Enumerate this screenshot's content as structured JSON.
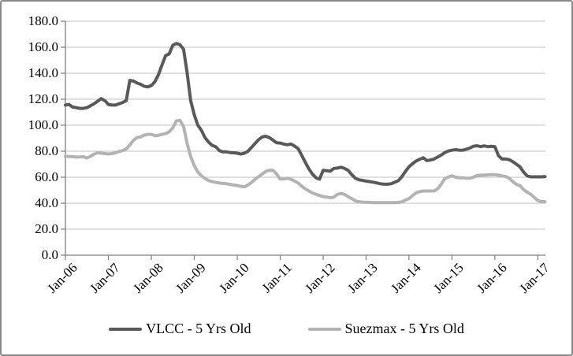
{
  "chart_data": {
    "type": "line",
    "title": "",
    "x_start": "Jan-2006",
    "x_freq": "monthly",
    "x_tick_labels": [
      "Jan-06",
      "Jan-07",
      "Jan-08",
      "Jan-09",
      "Jan-10",
      "Jan-11",
      "Jan-12",
      "Jan-13",
      "Jan-14",
      "Jan-15",
      "Jan-16",
      "Jan-17"
    ],
    "y_tick_labels": [
      "0.0",
      "20.0",
      "40.0",
      "60.0",
      "80.0",
      "100.0",
      "120.0",
      "140.0",
      "160.0",
      "180.0"
    ],
    "y_axis": {
      "min": 0,
      "max": 180,
      "step": 20
    },
    "grid": "horizontal",
    "legend_position": "bottom",
    "series": [
      {
        "name": "VLCC - 5 Yrs Old",
        "color": "#595959",
        "values": [
          115.5,
          116,
          114,
          113.5,
          113,
          113,
          113.5,
          115,
          116.5,
          118.5,
          120.5,
          119,
          116,
          115.5,
          115.5,
          116.5,
          117.5,
          119,
          134.5,
          134,
          132.5,
          131.5,
          130,
          129.5,
          130.5,
          133.5,
          139,
          146.5,
          153.5,
          155,
          161.5,
          163,
          162,
          158.5,
          140.5,
          119,
          108,
          100,
          96,
          90.5,
          87,
          84.5,
          83.5,
          80.5,
          79.5,
          79.5,
          79,
          78.8,
          78.5,
          77.8,
          78.5,
          80,
          83,
          86,
          89,
          91,
          91.5,
          90.5,
          88.5,
          86.5,
          86.3,
          85.5,
          85,
          85.5,
          84,
          82,
          77,
          71.5,
          66.5,
          62.5,
          59.5,
          58.5,
          65.3,
          65,
          64.6,
          66.7,
          67,
          67.7,
          66.7,
          65.3,
          62,
          59.2,
          58,
          57.6,
          57,
          56.6,
          56.2,
          55.6,
          55,
          54.6,
          54.6,
          55,
          56.2,
          57.3,
          60.5,
          64.5,
          68,
          70.5,
          72.5,
          73.8,
          75,
          72.8,
          73.2,
          74,
          75.5,
          77,
          79,
          80.2,
          80.8,
          81.2,
          80.8,
          80.8,
          81.6,
          82.4,
          83.9,
          84.2,
          83.5,
          84.1,
          83.5,
          83.8,
          83.5,
          76.5,
          74,
          74,
          73.5,
          72,
          70,
          68,
          64,
          61,
          60.3,
          60.3,
          60.3,
          60.3,
          60.5
        ]
      },
      {
        "name": "Suezmax - 5 Yrs Old",
        "color": "#b3b3b3",
        "values": [
          76,
          76,
          75.8,
          75.5,
          75.5,
          75.8,
          74.8,
          76,
          77.8,
          78.8,
          78.5,
          78.2,
          77.9,
          78.2,
          78.8,
          79.8,
          80.5,
          81.8,
          84.8,
          88.3,
          90.5,
          91,
          92.3,
          93,
          93,
          92,
          92.3,
          93,
          93.5,
          95,
          98,
          103.3,
          103.8,
          99,
          86,
          76,
          69,
          64,
          61,
          59,
          57.5,
          56.6,
          56,
          55.5,
          55.2,
          55,
          54.5,
          54,
          53.6,
          53,
          52.6,
          54,
          56,
          58.5,
          60.5,
          62.5,
          64.5,
          65.3,
          65.3,
          62.5,
          58.6,
          58.6,
          59.2,
          58.4,
          57,
          55.6,
          53.1,
          51.1,
          49.5,
          47.9,
          46.9,
          45.9,
          45.1,
          44.7,
          44.2,
          44.7,
          46.7,
          47.5,
          46.7,
          45.1,
          43.5,
          41.8,
          41,
          40.8,
          40.8,
          40.6,
          40.5,
          40.5,
          40.5,
          40.5,
          40.5,
          40.5,
          40.5,
          40.6,
          41,
          42.4,
          43.5,
          45.9,
          48,
          49,
          49.4,
          49.4,
          49.4,
          49.4,
          51,
          54.6,
          59,
          60.2,
          61,
          60,
          59.6,
          59.6,
          59.2,
          59.2,
          60,
          61.2,
          61.6,
          61.6,
          61.8,
          62,
          62,
          61.6,
          61,
          60.6,
          59.2,
          56.6,
          54.5,
          53.6,
          50.5,
          48.5,
          46.9,
          44.4,
          42,
          41.3,
          41
        ]
      }
    ]
  },
  "legend": {
    "vlcc_label": "VLCC - 5 Yrs Old",
    "suezmax_label": "Suezmax - 5 Yrs Old"
  },
  "colors": {
    "vlcc_line": "#595959",
    "suezmax_line": "#b3b3b3",
    "gridline": "#c0c0c0",
    "axis": "#7f7f7f",
    "frame_border": "#8a8a8a",
    "background": "#ffffff",
    "text": "#000000"
  }
}
